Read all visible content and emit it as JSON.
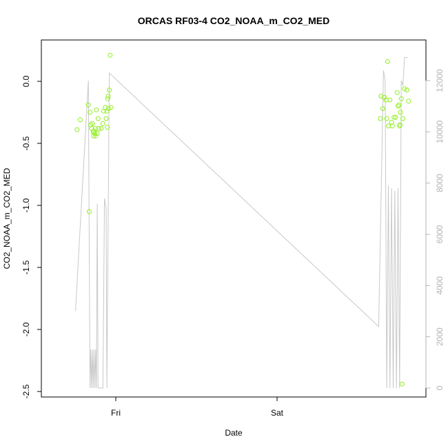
{
  "chart_data": {
    "type": "scatter",
    "title": "ORCAS RF03-4 CO2_NOAA_m_CO2_MED",
    "xlabel": "Date",
    "ylabel": "CO2_NOAA_m_CO2_MED",
    "x_ticks": [
      "Fri",
      "Sat"
    ],
    "y_ticks": [
      "-2.5",
      "-2.0",
      "-1.5",
      "-1.0",
      "-0.5",
      "0.0"
    ],
    "y2_ticks": [
      "0",
      "2000",
      "4000",
      "6000",
      "8000",
      "10000",
      "12000"
    ],
    "grid": false,
    "colors": {
      "points": "#90ee20",
      "line": "#c8c8c8"
    },
    "series": [
      {
        "kind": "points",
        "points": [
          [
            -0.24,
            -0.39
          ],
          [
            -0.22,
            -0.31
          ],
          [
            -0.17,
            -0.19
          ],
          [
            -0.165,
            -1.05
          ],
          [
            -0.16,
            -0.25
          ],
          [
            -0.155,
            -0.35
          ],
          [
            -0.15,
            -0.38
          ],
          [
            -0.145,
            -0.34
          ],
          [
            -0.14,
            -0.41
          ],
          [
            -0.138,
            -0.44
          ],
          [
            -0.135,
            -0.4
          ],
          [
            -0.13,
            -0.42
          ],
          [
            -0.127,
            -0.38
          ],
          [
            -0.125,
            -0.44
          ],
          [
            -0.12,
            -0.23
          ],
          [
            -0.115,
            -0.42
          ],
          [
            -0.11,
            -0.3
          ],
          [
            -0.105,
            -0.38
          ],
          [
            -0.09,
            -0.38
          ],
          [
            -0.08,
            -0.34
          ],
          [
            -0.075,
            -0.24
          ],
          [
            -0.065,
            -0.21
          ],
          [
            -0.06,
            -0.3
          ],
          [
            -0.055,
            -0.24
          ],
          [
            -0.052,
            -0.37
          ],
          [
            -0.05,
            -0.14
          ],
          [
            -0.047,
            -0.12
          ],
          [
            -0.045,
            -0.22
          ],
          [
            -0.04,
            -0.07
          ],
          [
            -0.035,
            0.21
          ],
          [
            -0.03,
            -0.21
          ],
          [
            1.64,
            -0.3
          ],
          [
            1.645,
            -0.12
          ],
          [
            1.655,
            -0.22
          ],
          [
            1.665,
            -0.13
          ],
          [
            1.675,
            -0.15
          ],
          [
            1.68,
            -0.3
          ],
          [
            1.685,
            0.16
          ],
          [
            1.69,
            -0.36
          ],
          [
            1.7,
            -0.15
          ],
          [
            1.71,
            -0.33
          ],
          [
            1.715,
            -0.36
          ],
          [
            1.725,
            -0.29
          ],
          [
            1.735,
            -0.29
          ],
          [
            1.745,
            -0.09
          ],
          [
            1.75,
            -0.2
          ],
          [
            1.755,
            -0.19
          ],
          [
            1.76,
            -0.36
          ],
          [
            1.762,
            -0.35
          ],
          [
            1.765,
            -0.25
          ],
          [
            1.77,
            -0.14
          ],
          [
            1.775,
            -2.44
          ],
          [
            1.78,
            -0.3
          ],
          [
            1.79,
            -0.06
          ],
          [
            1.805,
            -0.07
          ],
          [
            1.815,
            -0.16
          ]
        ]
      },
      {
        "kind": "line",
        "axis": "right",
        "points": [
          [
            -0.25,
            3000
          ],
          [
            -0.17,
            12000
          ],
          [
            -0.16,
            0
          ],
          [
            -0.155,
            1500
          ],
          [
            -0.15,
            0
          ],
          [
            -0.145,
            1500
          ],
          [
            -0.14,
            0
          ],
          [
            -0.135,
            1500
          ],
          [
            -0.13,
            0
          ],
          [
            -0.125,
            1500
          ],
          [
            -0.12,
            0
          ],
          [
            -0.115,
            7200
          ],
          [
            -0.11,
            0
          ],
          [
            -0.08,
            0
          ],
          [
            -0.07,
            7400
          ],
          [
            -0.06,
            7000
          ],
          [
            -0.055,
            0
          ],
          [
            -0.04,
            12300
          ],
          [
            1.63,
            2400
          ],
          [
            1.66,
            12400
          ],
          [
            1.67,
            12000
          ],
          [
            1.68,
            0
          ],
          [
            1.69,
            7900
          ],
          [
            1.7,
            0
          ],
          [
            1.71,
            7800
          ],
          [
            1.72,
            0
          ],
          [
            1.73,
            7700
          ],
          [
            1.74,
            0
          ],
          [
            1.75,
            7800
          ],
          [
            1.76,
            0
          ],
          [
            1.77,
            12000
          ],
          [
            1.78,
            11800
          ],
          [
            1.79,
            12900
          ],
          [
            1.81,
            12900
          ]
        ]
      }
    ]
  }
}
